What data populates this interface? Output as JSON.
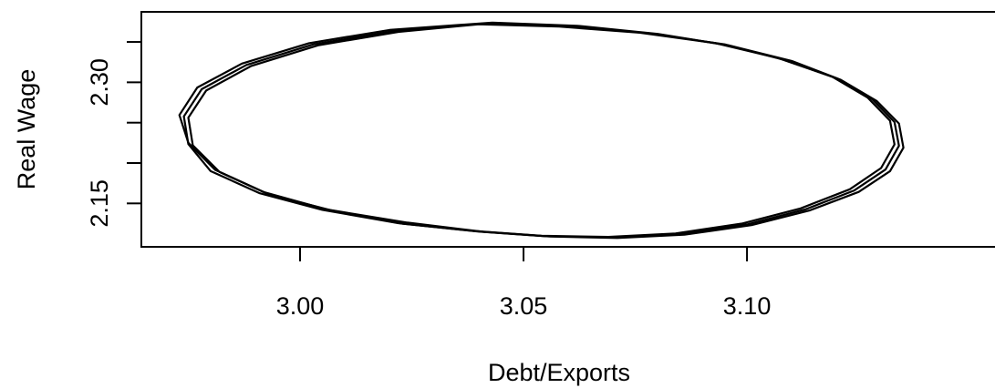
{
  "chart_data": {
    "type": "line",
    "title": "",
    "xlabel": "Debt/Exports",
    "ylabel": "Real Wage",
    "xlim": [
      2.9645,
      3.1563
    ],
    "ylim": [
      2.0962,
      2.3873
    ],
    "x_ticks": [
      3.0,
      3.05,
      3.1
    ],
    "x_tick_labels": [
      "3.00",
      "3.05",
      "3.10"
    ],
    "y_ticks": [
      2.15,
      2.2,
      2.25,
      2.3,
      2.35
    ],
    "y_tick_labels": [
      "2.15",
      "",
      "",
      "2.30",
      ""
    ],
    "grid": false,
    "legend": "none",
    "line_color": "#000000",
    "series": [
      {
        "x": [
          3.041,
          3.06,
          3.078,
          3.095,
          3.108,
          3.12,
          3.128,
          3.133,
          3.134,
          3.131,
          3.124,
          3.113,
          3.1,
          3.085,
          3.07,
          3.055,
          3.04,
          3.022,
          3.005,
          2.991,
          2.98,
          2.975,
          2.974,
          2.978,
          2.988,
          3.003,
          3.021,
          3.041
        ],
        "y": [
          2.3727,
          2.3696,
          2.3608,
          2.347,
          2.3283,
          2.305,
          2.2791,
          2.2508,
          2.2213,
          2.192,
          2.166,
          2.1425,
          2.124,
          2.112,
          2.1078,
          2.1093,
          2.115,
          2.1255,
          2.142,
          2.1625,
          2.19,
          2.2235,
          2.2578,
          2.2915,
          2.3215,
          2.347,
          2.3635,
          2.3727
        ]
      },
      {
        "x": [
          3.043,
          3.062,
          3.08,
          3.096,
          3.11,
          3.121,
          3.129,
          3.134,
          3.135,
          3.132,
          3.125,
          3.114,
          3.101,
          3.086,
          3.071,
          3.056,
          3.041,
          3.024,
          3.006,
          2.992,
          2.981,
          2.975,
          2.973,
          2.977,
          2.987,
          3.002,
          3.02,
          3.043
        ],
        "y": [
          2.374,
          2.37,
          2.36,
          2.3455,
          2.3265,
          2.303,
          2.277,
          2.249,
          2.219,
          2.19,
          2.1642,
          2.1412,
          2.123,
          2.1112,
          2.1072,
          2.109,
          2.1148,
          2.1262,
          2.1425,
          2.1638,
          2.1915,
          2.225,
          2.2595,
          2.2935,
          2.3232,
          2.3485,
          2.3648,
          2.374
        ]
      },
      {
        "x": [
          3.04,
          3.058,
          3.076,
          3.093,
          3.107,
          3.119,
          3.127,
          3.132,
          3.133,
          3.13,
          3.123,
          3.112,
          3.099,
          3.084,
          3.069,
          3.054,
          3.039,
          3.023,
          3.007,
          2.993,
          2.982,
          2.976,
          2.975,
          2.979,
          2.989,
          3.004,
          3.022,
          3.04
        ],
        "y": [
          2.3718,
          2.369,
          2.3615,
          2.3485,
          2.33,
          2.3072,
          2.281,
          2.2525,
          2.223,
          2.1938,
          2.1675,
          2.1438,
          2.1252,
          2.1128,
          2.1085,
          2.1098,
          2.1158,
          2.1248,
          2.1415,
          2.1612,
          2.1888,
          2.222,
          2.2562,
          2.2898,
          2.32,
          2.3458,
          2.3625,
          2.3718
        ]
      }
    ]
  }
}
